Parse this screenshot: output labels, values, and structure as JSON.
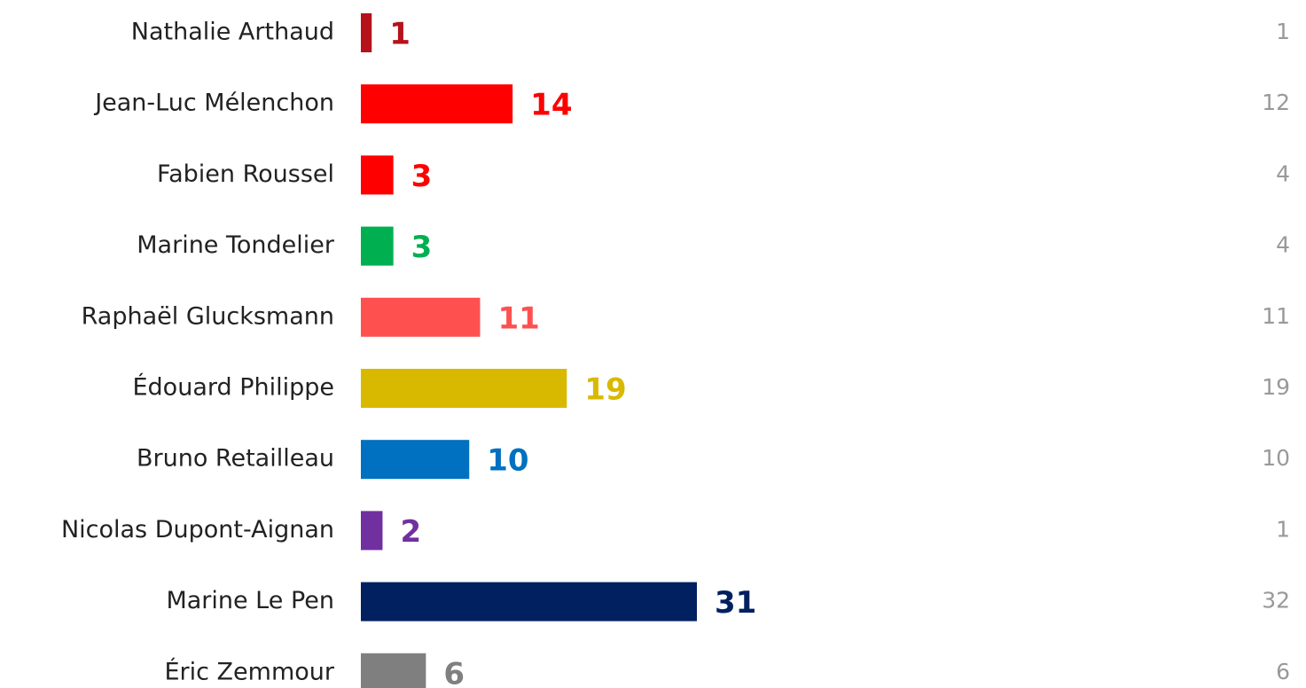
{
  "chart_data": {
    "type": "bar",
    "orientation": "horizontal",
    "categories": [
      "Nathalie Arthaud",
      "Jean-Luc Mélenchon",
      "Fabien Roussel",
      "Marine Tondelier",
      "Raphaël Glucksmann",
      "Édouard Philippe",
      "Bruno Retailleau",
      "Nicolas Dupont-Aignan",
      "Marine Le Pen",
      "Éric Zemmour"
    ],
    "values": [
      1,
      14,
      3,
      3,
      11,
      19,
      10,
      2,
      31,
      6
    ],
    "colors": [
      "#b5121b",
      "#ff0000",
      "#ff0000",
      "#00b050",
      "#ff5050",
      "#d9b900",
      "#0070c0",
      "#7030a0",
      "#002060",
      "#7f7f7f"
    ],
    "comparison_values": [
      1,
      12,
      4,
      4,
      11,
      19,
      10,
      1,
      32,
      6
    ]
  }
}
